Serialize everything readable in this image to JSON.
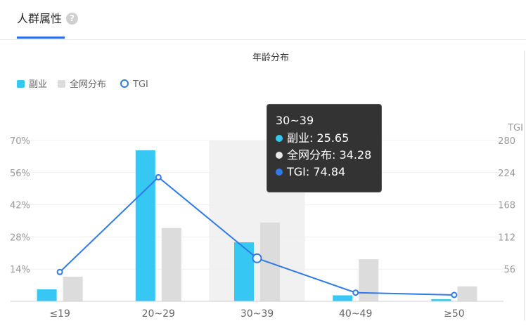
{
  "header": {
    "tab_label": "人群属性",
    "help_icon_glyph": "?"
  },
  "chart_data": {
    "type": "bar",
    "title": "年龄分布",
    "categories": [
      "≤19",
      "20~29",
      "30~39",
      "40~49",
      "≥50"
    ],
    "series": [
      {
        "name": "副业",
        "type": "bar",
        "axis": "left",
        "color": "#36c7f2",
        "values": [
          5.2,
          65.7,
          25.65,
          2.6,
          0.9
        ]
      },
      {
        "name": "全网分布",
        "type": "bar",
        "axis": "left",
        "color": "#dcdcdc",
        "values": [
          10.7,
          31.9,
          34.28,
          18.3,
          6.5
        ]
      },
      {
        "name": "TGI",
        "type": "line",
        "axis": "right",
        "color": "#2f7ae5",
        "values": [
          51,
          216,
          74.84,
          15,
          11
        ]
      }
    ],
    "y_left": {
      "ticks": [
        "14%",
        "28%",
        "42%",
        "56%",
        "70%"
      ],
      "ylim": [
        0,
        70
      ]
    },
    "y_right": {
      "label": "TGI",
      "ticks": [
        "56",
        "112",
        "168",
        "224",
        "280"
      ],
      "ylim": [
        0,
        280
      ]
    },
    "legend_position": "top-left",
    "highlighted_category": "30~39",
    "tooltip": {
      "title": "30~39",
      "rows": [
        {
          "label": "副业: 25.65",
          "color": "#36c7f2"
        },
        {
          "label": "全网分布: 34.28",
          "color": "#e8e8e8"
        },
        {
          "label": "TGI: 74.84",
          "color": "#2f7ae5"
        }
      ]
    }
  }
}
